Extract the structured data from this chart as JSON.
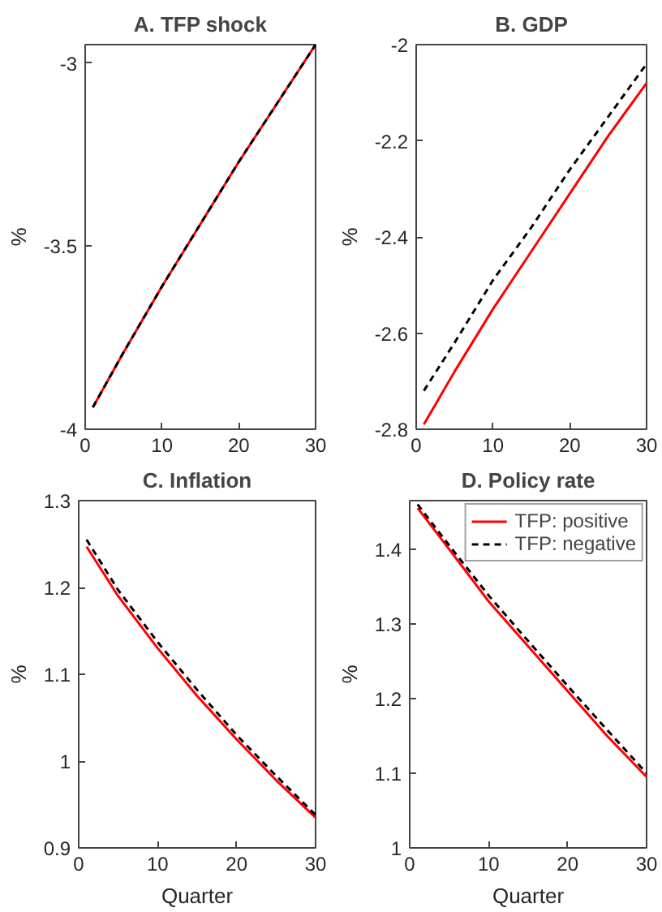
{
  "chart_data": [
    {
      "type": "line",
      "title": "A. TFP shock",
      "ylabel": "%",
      "x": [
        1,
        5,
        10,
        15,
        20,
        25,
        30
      ],
      "xlim": [
        0,
        30
      ],
      "xticks": [
        0,
        10,
        20,
        30
      ],
      "ylim": [
        -4,
        -2.95
      ],
      "yticks": [
        -4,
        -3.5,
        -3
      ],
      "grid": false,
      "legend": false,
      "series": [
        {
          "color": "#ff0000",
          "line_style": "solid",
          "values": [
            -3.94,
            -3.79,
            -3.61,
            -3.44,
            -3.27,
            -3.11,
            -2.95
          ]
        },
        {
          "color": "#000000",
          "line_style": "dashed",
          "values": [
            -3.94,
            -3.79,
            -3.61,
            -3.44,
            -3.27,
            -3.11,
            -2.95
          ]
        }
      ]
    },
    {
      "type": "line",
      "title": "B. GDP",
      "ylabel": "%",
      "x": [
        1,
        5,
        10,
        15,
        20,
        25,
        30
      ],
      "xlim": [
        0,
        30
      ],
      "xticks": [
        0,
        10,
        20,
        30
      ],
      "ylim": [
        -2.8,
        -2
      ],
      "yticks": [
        -2.8,
        -2.6,
        -2.4,
        -2.2,
        -2
      ],
      "grid": false,
      "legend": false,
      "series": [
        {
          "color": "#ff0000",
          "line_style": "solid",
          "values": [
            -2.79,
            -2.68,
            -2.55,
            -2.43,
            -2.31,
            -2.19,
            -2.08
          ]
        },
        {
          "color": "#000000",
          "line_style": "dashed",
          "values": [
            -2.72,
            -2.62,
            -2.49,
            -2.38,
            -2.26,
            -2.15,
            -2.04
          ]
        }
      ]
    },
    {
      "type": "line",
      "title": "C. Inflation",
      "xlabel": "Quarter",
      "ylabel": "%",
      "x": [
        1,
        5,
        10,
        15,
        20,
        25,
        30
      ],
      "xlim": [
        0,
        30
      ],
      "xticks": [
        0,
        10,
        20,
        30
      ],
      "ylim": [
        0.9,
        1.3
      ],
      "yticks": [
        0.9,
        1,
        1.1,
        1.2,
        1.3
      ],
      "grid": false,
      "legend": false,
      "series": [
        {
          "color": "#ff0000",
          "line_style": "solid",
          "values": [
            1.247,
            1.19,
            1.13,
            1.075,
            1.025,
            0.978,
            0.935
          ]
        },
        {
          "color": "#000000",
          "line_style": "dashed",
          "values": [
            1.255,
            1.197,
            1.137,
            1.082,
            1.03,
            0.983,
            0.938
          ]
        }
      ]
    },
    {
      "type": "line",
      "title": "D. Policy rate",
      "xlabel": "Quarter",
      "ylabel": "%",
      "x": [
        1,
        5,
        10,
        15,
        20,
        25,
        30
      ],
      "xlim": [
        0,
        30
      ],
      "xticks": [
        0,
        10,
        20,
        30
      ],
      "ylim": [
        1,
        1.465
      ],
      "yticks": [
        1,
        1.1,
        1.2,
        1.3,
        1.4
      ],
      "grid": false,
      "legend": "top right",
      "series": [
        {
          "name": "TFP: positive",
          "color": "#ff0000",
          "line_style": "solid",
          "values": [
            1.455,
            1.4,
            1.33,
            1.27,
            1.21,
            1.15,
            1.095
          ]
        },
        {
          "name": "TFP: negative",
          "color": "#000000",
          "line_style": "dashed",
          "values": [
            1.46,
            1.405,
            1.338,
            1.277,
            1.217,
            1.158,
            1.1
          ]
        }
      ]
    }
  ]
}
